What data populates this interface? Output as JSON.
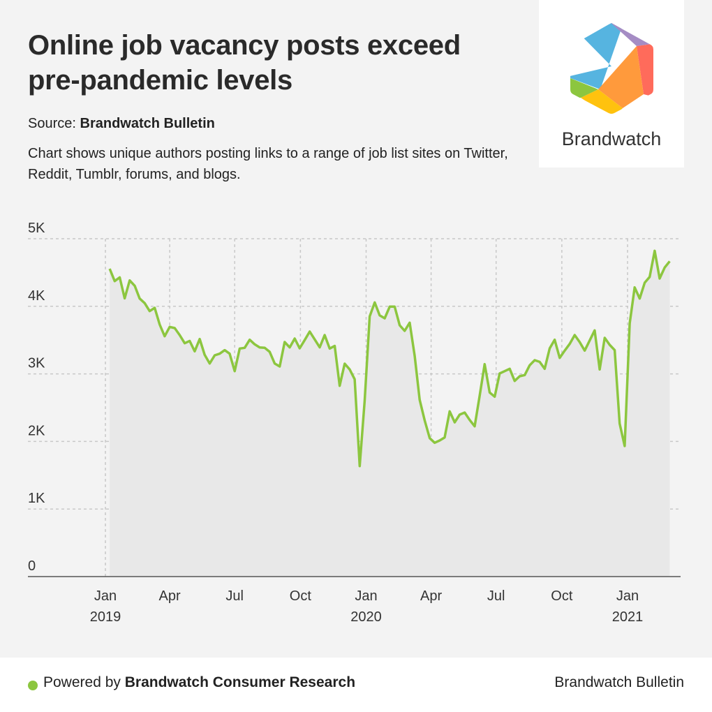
{
  "header": {
    "title": "Online job vacancy posts exceed pre-pandemic levels",
    "source_label": "Source:",
    "source_name": "Brandwatch Bulletin",
    "description": "Chart shows unique authors posting links to a range of job list sites on Twitter, Reddit, Tumblr, forums, and blogs."
  },
  "logo": {
    "text": "Brandwatch",
    "colors": [
      "#56b4e0",
      "#a58cc4",
      "#ff6b5b",
      "#ff9a3c",
      "#ffc20e",
      "#8cc63f"
    ]
  },
  "footer": {
    "powered_prefix": "Powered by",
    "powered_name": "Brandwatch Consumer Research",
    "right": "Brandwatch Bulletin",
    "dot_color": "#8cc63f"
  },
  "chart_data": {
    "type": "area",
    "title": "",
    "xlabel": "",
    "ylabel": "",
    "ylim": [
      0,
      5000
    ],
    "grid": true,
    "line_color": "#8cc63f",
    "fill_color": "#e8e8e8",
    "y_ticks": [
      {
        "value": 0,
        "label": "0"
      },
      {
        "value": 1000,
        "label": "1K"
      },
      {
        "value": 2000,
        "label": "2K"
      },
      {
        "value": 3000,
        "label": "3K"
      },
      {
        "value": 4000,
        "label": "4K"
      },
      {
        "value": 5000,
        "label": "5K"
      }
    ],
    "x_ticks": [
      {
        "date": "2019-01-01",
        "label": "Jan",
        "year": "2019"
      },
      {
        "date": "2019-04-01",
        "label": "Apr",
        "year": ""
      },
      {
        "date": "2019-07-01",
        "label": "Jul",
        "year": ""
      },
      {
        "date": "2019-10-01",
        "label": "Oct",
        "year": ""
      },
      {
        "date": "2020-01-01",
        "label": "Jan",
        "year": "2020"
      },
      {
        "date": "2020-04-01",
        "label": "Apr",
        "year": ""
      },
      {
        "date": "2020-07-01",
        "label": "Jul",
        "year": ""
      },
      {
        "date": "2020-10-01",
        "label": "Oct",
        "year": ""
      },
      {
        "date": "2021-01-01",
        "label": "Jan",
        "year": "2021"
      }
    ],
    "x": [
      "2019-01-07",
      "2019-01-14",
      "2019-01-21",
      "2019-01-28",
      "2019-02-04",
      "2019-02-11",
      "2019-02-18",
      "2019-02-25",
      "2019-03-04",
      "2019-03-11",
      "2019-03-18",
      "2019-03-25",
      "2019-04-01",
      "2019-04-08",
      "2019-04-15",
      "2019-04-22",
      "2019-04-29",
      "2019-05-06",
      "2019-05-13",
      "2019-05-20",
      "2019-05-27",
      "2019-06-03",
      "2019-06-10",
      "2019-06-17",
      "2019-06-24",
      "2019-07-01",
      "2019-07-08",
      "2019-07-15",
      "2019-07-22",
      "2019-07-29",
      "2019-08-05",
      "2019-08-12",
      "2019-08-19",
      "2019-08-26",
      "2019-09-02",
      "2019-09-09",
      "2019-09-16",
      "2019-09-23",
      "2019-09-30",
      "2019-10-07",
      "2019-10-14",
      "2019-10-21",
      "2019-10-28",
      "2019-11-04",
      "2019-11-11",
      "2019-11-18",
      "2019-11-25",
      "2019-12-02",
      "2019-12-09",
      "2019-12-16",
      "2019-12-23",
      "2019-12-30",
      "2020-01-06",
      "2020-01-13",
      "2020-01-20",
      "2020-01-27",
      "2020-02-03",
      "2020-02-10",
      "2020-02-17",
      "2020-02-24",
      "2020-03-02",
      "2020-03-09",
      "2020-03-16",
      "2020-03-23",
      "2020-03-30",
      "2020-04-06",
      "2020-04-13",
      "2020-04-20",
      "2020-04-27",
      "2020-05-04",
      "2020-05-11",
      "2020-05-18",
      "2020-05-25",
      "2020-06-01",
      "2020-06-08",
      "2020-06-15",
      "2020-06-22",
      "2020-06-29",
      "2020-07-06",
      "2020-07-13",
      "2020-07-20",
      "2020-07-27",
      "2020-08-03",
      "2020-08-10",
      "2020-08-17",
      "2020-08-24",
      "2020-08-31",
      "2020-09-07",
      "2020-09-14",
      "2020-09-21",
      "2020-09-28",
      "2020-10-05",
      "2020-10-12",
      "2020-10-19",
      "2020-10-26",
      "2020-11-02",
      "2020-11-09",
      "2020-11-16",
      "2020-11-23",
      "2020-11-30",
      "2020-12-07",
      "2020-12-14",
      "2020-12-21",
      "2020-12-28",
      "2021-01-04",
      "2021-01-11",
      "2021-01-18",
      "2021-01-25",
      "2021-02-01",
      "2021-02-08",
      "2021-02-15",
      "2021-02-22",
      "2021-03-01"
    ],
    "y": [
      4556,
      4373,
      4428,
      4118,
      4383,
      4304,
      4115,
      4046,
      3929,
      3977,
      3729,
      3557,
      3695,
      3678,
      3574,
      3454,
      3488,
      3334,
      3516,
      3282,
      3154,
      3275,
      3299,
      3351,
      3299,
      3040,
      3375,
      3385,
      3505,
      3437,
      3392,
      3385,
      3326,
      3154,
      3110,
      3471,
      3392,
      3523,
      3378,
      3500,
      3626,
      3510,
      3393,
      3574,
      3375,
      3413,
      2823,
      3151,
      3065,
      2920,
      1635,
      2600,
      3850,
      4057,
      3867,
      3822,
      3995,
      3995,
      3719,
      3636,
      3757,
      3264,
      2617,
      2311,
      2049,
      1980,
      2014,
      2059,
      2445,
      2283,
      2397,
      2428,
      2317,
      2224,
      2679,
      3144,
      2724,
      2662,
      3006,
      3040,
      3075,
      2896,
      2965,
      2982,
      3127,
      3202,
      3178,
      3075,
      3378,
      3505,
      3237,
      3344,
      3443,
      3574,
      3471,
      3344,
      3495,
      3644,
      3065,
      3533,
      3430,
      3351,
      2266,
      1932,
      3747,
      4280,
      4115,
      4349,
      4435,
      4821,
      4411,
      4573,
      4666
    ]
  }
}
